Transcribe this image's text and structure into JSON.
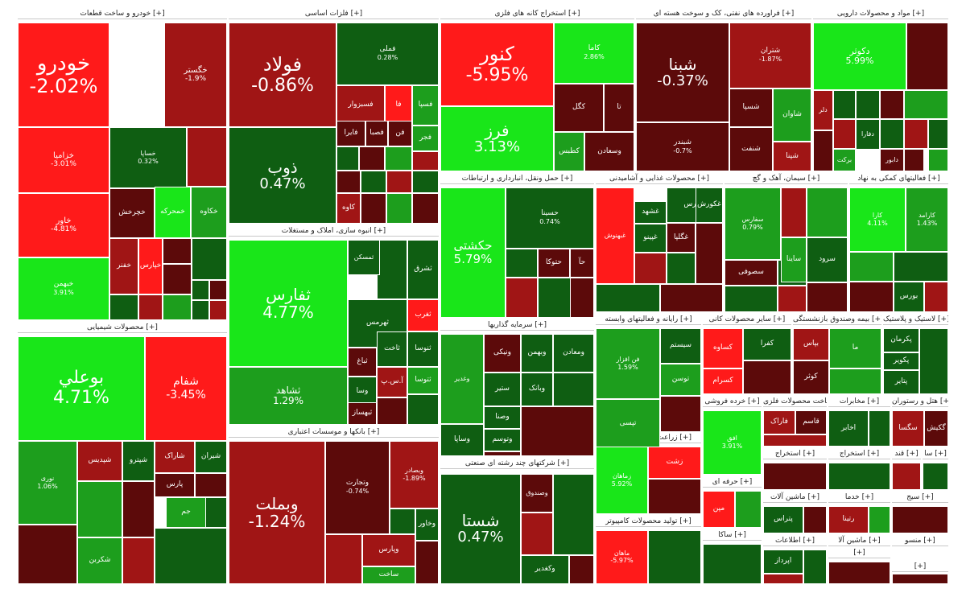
{
  "chart_data": {
    "type": "treemap",
    "title": "",
    "colors": {
      "strong_pos": "#19e619",
      "mid_pos": "#1d9e1d",
      "weak_pos": "#0f5e12",
      "weak_neg": "#5c0a0a",
      "mid_neg": "#a01515",
      "strong_neg": "#ff1a1a"
    },
    "sectors": [
      {
        "name": "خودرو و ساخت قطعات [+]",
        "stocks": [
          {
            "symbol": "خودرو",
            "change": "-2.02%",
            "value": -2.02
          },
          {
            "symbol": "خگستر",
            "change": "-1.9%",
            "value": -1.9
          },
          {
            "symbol": "خزامیا",
            "change": "-3.01%",
            "value": -3.01
          },
          {
            "symbol": "خساپا",
            "change": "0.32%",
            "value": 0.32
          },
          {
            "symbol": "خاور",
            "change": "-4.81%",
            "value": -4.81
          },
          {
            "symbol": "خبهمن",
            "change": "3.91%",
            "value": 3.91
          },
          {
            "symbol": "خمحرکه",
            "change": "",
            "value": 2.5
          },
          {
            "symbol": "خکاوه",
            "change": "",
            "value": 1.5
          },
          {
            "symbol": "خچرخش",
            "change": "",
            "value": -0.5
          },
          {
            "symbol": "خفنر",
            "change": "",
            "value": -1.5
          },
          {
            "symbol": "خپارس",
            "change": "",
            "value": -2.5
          }
        ]
      },
      {
        "name": "فلزات اساسی [+]",
        "stocks": [
          {
            "symbol": "فولاد",
            "change": "-0.86%",
            "value": -0.86
          },
          {
            "symbol": "فملی",
            "change": "0.28%",
            "value": 0.28
          },
          {
            "symbol": "ذوب",
            "change": "0.47%",
            "value": 0.47
          },
          {
            "symbol": "فسپا",
            "change": "",
            "value": 1.0
          },
          {
            "symbol": "فجر",
            "change": "",
            "value": 1.5
          },
          {
            "symbol": "فسبزوار",
            "change": "",
            "value": -0.8
          },
          {
            "symbol": "فا",
            "change": "",
            "value": -3.0
          },
          {
            "symbol": "فایرا",
            "change": "",
            "value": -0.6
          },
          {
            "symbol": "فصبا",
            "change": "",
            "value": -0.6
          },
          {
            "symbol": "فن",
            "change": "",
            "value": -0.5
          },
          {
            "symbol": "کاوه",
            "change": "",
            "value": -0.8
          }
        ]
      },
      {
        "name": "استخراج کانه های فلزی [+]",
        "stocks": [
          {
            "symbol": "کنور",
            "change": "-5.95%",
            "value": -5.95
          },
          {
            "symbol": "کاما",
            "change": "2.86%",
            "value": 2.86
          },
          {
            "symbol": "فرز",
            "change": "3.13%",
            "value": 3.13
          },
          {
            "symbol": "کگل",
            "change": "",
            "value": -0.6
          },
          {
            "symbol": "تا",
            "change": "",
            "value": -0.6
          },
          {
            "symbol": "وسعادن",
            "change": "",
            "value": -0.6
          },
          {
            "symbol": "کطبس",
            "change": "",
            "value": 1.5
          }
        ]
      },
      {
        "name": "فراورده های نفتی، کک و سوخت هسته ای [+]",
        "stocks": [
          {
            "symbol": "شبنا",
            "change": "-0.37%",
            "value": -0.37
          },
          {
            "symbol": "شتران",
            "change": "-1.87%",
            "value": -1.87
          },
          {
            "symbol": "شاوان",
            "change": "",
            "value": 1.5
          },
          {
            "symbol": "شسپا",
            "change": "",
            "value": -0.7
          },
          {
            "symbol": "شبندر",
            "change": "-0.7%",
            "value": -0.7
          },
          {
            "symbol": "شنفت",
            "change": "",
            "value": -0.6
          },
          {
            "symbol": "شپنا",
            "change": "",
            "value": -1.0
          }
        ]
      },
      {
        "name": "مواد و محصولات دارویی [+]",
        "stocks": [
          {
            "symbol": "دکوثر",
            "change": "5.99%",
            "value": 5.99
          },
          {
            "symbol": "برکت",
            "change": "",
            "value": 1.0
          },
          {
            "symbol": "دلر",
            "change": "",
            "value": -1.0
          },
          {
            "symbol": "دفارا",
            "change": "",
            "value": 0.5
          },
          {
            "symbol": "دابور",
            "change": "",
            "value": -0.7
          }
        ]
      },
      {
        "name": "محصولات شیمیایی [+]",
        "stocks": [
          {
            "symbol": "بوعلي",
            "change": "4.71%",
            "value": 4.71
          },
          {
            "symbol": "شفام",
            "change": "-3.45%",
            "value": -3.45
          },
          {
            "symbol": "نوری",
            "change": "1.06%",
            "value": 1.06
          },
          {
            "symbol": "شپدیس",
            "change": "",
            "value": -0.8
          },
          {
            "symbol": "شپترو",
            "change": "",
            "value": 0.6
          },
          {
            "symbol": "شاراک",
            "change": "",
            "value": -1.0
          },
          {
            "symbol": "شیران",
            "change": "",
            "value": 0.6
          },
          {
            "symbol": "جم",
            "change": "",
            "value": 1.0
          },
          {
            "symbol": "پارس",
            "change": "",
            "value": -0.7
          },
          {
            "symbol": "شکربن",
            "change": "",
            "value": 1.0
          }
        ]
      },
      {
        "name": "انبوه سازی، املاک و مستغلات [+]",
        "stocks": [
          {
            "symbol": "ثفارس",
            "change": "4.77%",
            "value": 4.77
          },
          {
            "symbol": "ثشاهد",
            "change": "1.29%",
            "value": 1.29
          },
          {
            "symbol": "ثمسکن",
            "change": "",
            "value": 0.6
          },
          {
            "symbol": "ثشرق",
            "change": "",
            "value": 0.6
          },
          {
            "symbol": "ثهرمس",
            "change": "",
            "value": 0.7
          },
          {
            "symbol": "ثغرب",
            "change": "",
            "value": -3.0
          },
          {
            "symbol": "ثباغ",
            "change": "",
            "value": -0.6
          },
          {
            "symbol": "ثاخت",
            "change": "",
            "value": 0.5
          },
          {
            "symbol": "ثنوسا",
            "change": "",
            "value": 0.6
          },
          {
            "symbol": "ثتوسا",
            "change": "",
            "value": 1.0
          },
          {
            "symbol": "آ.س.پ",
            "change": "",
            "value": -1.0
          },
          {
            "symbol": "وسا",
            "change": "",
            "value": 0.6
          },
          {
            "symbol": "ثبهساز",
            "change": "",
            "value": -0.6
          }
        ]
      },
      {
        "name": "حمل ونقل، انبارداری و ارتباطات [+]",
        "stocks": [
          {
            "symbol": "حکشتی",
            "change": "5.79%",
            "value": 5.79
          },
          {
            "symbol": "حسینا",
            "change": "0.74%",
            "value": 0.74
          },
          {
            "symbol": "حتوکا",
            "change": "",
            "value": -0.7
          },
          {
            "symbol": "حآ",
            "change": "",
            "value": -0.7
          }
        ]
      },
      {
        "name": "بانکها و موسسات اعتباری [+]",
        "stocks": [
          {
            "symbol": "وبملت",
            "change": "-1.24%",
            "value": -1.24
          },
          {
            "symbol": "وتجارت",
            "change": "-0.74%",
            "value": -0.74
          },
          {
            "symbol": "وبصادر",
            "change": "-1.89%",
            "value": -1.89
          },
          {
            "symbol": "وخاور",
            "change": "",
            "value": 0.6
          },
          {
            "symbol": "وپارس",
            "change": "",
            "value": -0.8
          },
          {
            "symbol": "ساخت",
            "change": "",
            "value": 0.8
          }
        ]
      },
      {
        "name": "سرمایه گذاریها [+]",
        "stocks": [
          {
            "symbol": "وغدیر",
            "change": "",
            "value": 1.0
          },
          {
            "symbol": "ونیکی",
            "change": "",
            "value": -0.6
          },
          {
            "symbol": "وبهمن",
            "change": "",
            "value": 0.5
          },
          {
            "symbol": "ومعادن",
            "change": "",
            "value": 0.5
          },
          {
            "symbol": "وبانک",
            "change": "",
            "value": 0.6
          },
          {
            "symbol": "ستیر",
            "change": "",
            "value": 0.5
          },
          {
            "symbol": "وصنا",
            "change": "",
            "value": 0.6
          },
          {
            "symbol": "وتوسم",
            "change": "",
            "value": 0.6
          },
          {
            "symbol": "وساپا",
            "change": "",
            "value": 0.5
          }
        ]
      },
      {
        "name": "شرکتهای چند رشته ای صنعتی [+]",
        "stocks": [
          {
            "symbol": "شستا",
            "change": "0.47%",
            "value": 0.47
          },
          {
            "symbol": "وصندوق",
            "change": "",
            "value": -0.6
          },
          {
            "symbol": "وکغدیر",
            "change": "",
            "value": 0.6
          }
        ]
      },
      {
        "name": "محصولات غذایی و آشامیدنی [+]",
        "stocks": [
          {
            "symbol": "غبهنوش",
            "change": "",
            "value": -3.0
          },
          {
            "symbol": "غفارس",
            "change": "",
            "value": 0.6
          },
          {
            "symbol": "غشهد",
            "change": "",
            "value": 0.6
          },
          {
            "symbol": "غپینو",
            "change": "",
            "value": 0.6
          },
          {
            "symbol": "غگلپا",
            "change": "",
            "value": -0.6
          },
          {
            "symbol": "غکورش",
            "change": "",
            "value": 0.6
          }
        ]
      },
      {
        "name": "سیمان، آهک و گچ [+]",
        "stocks": [
          {
            "symbol": "سفارس",
            "change": "0.79%",
            "value": 0.79
          },
          {
            "symbol": "ساینا",
            "change": "",
            "value": 0.8
          },
          {
            "symbol": "سرود",
            "change": "",
            "value": 0.6
          },
          {
            "symbol": "سصوفی",
            "change": "",
            "value": -0.5
          }
        ]
      },
      {
        "name": "فعالیتهای کمکی به نهاد [+]",
        "stocks": [
          {
            "symbol": "کارا",
            "change": "4.11%",
            "value": 4.11
          },
          {
            "symbol": "کارامد",
            "change": "1.43%",
            "value": 1.43
          },
          {
            "symbol": "بورس",
            "change": "",
            "value": 0.6
          }
        ]
      },
      {
        "name": "رایانه و فعالیتهای وابسته [+]",
        "stocks": [
          {
            "symbol": "فن افزار",
            "change": "1.59%",
            "value": 1.59
          },
          {
            "symbol": "سیستم",
            "change": "",
            "value": 0.6
          },
          {
            "symbol": "توسن",
            "change": "",
            "value": 0.8
          },
          {
            "symbol": "تپسی",
            "change": "",
            "value": 1.0
          }
        ]
      },
      {
        "name": "سایر محصولات کانی [+]",
        "stocks": [
          {
            "symbol": "کساوه",
            "change": "",
            "value": -3.0
          },
          {
            "symbol": "کسرام",
            "change": "",
            "value": -3.0
          },
          {
            "symbol": "کفرا",
            "change": "",
            "value": 0.6
          }
        ]
      },
      {
        "name": "بیمه وصندوق بازنشستگی [+]",
        "stocks": [
          {
            "symbol": "بپاس",
            "change": "",
            "value": -1.0
          },
          {
            "symbol": "کوثر",
            "change": "",
            "value": -0.6
          },
          {
            "symbol": "ما",
            "change": "",
            "value": 1.5
          }
        ]
      },
      {
        "name": "لاستیک و پلاستیک [+]",
        "stocks": [
          {
            "symbol": "پکرمان",
            "change": "",
            "value": 0.6
          },
          {
            "symbol": "پکویر",
            "change": "",
            "value": 0.6
          },
          {
            "symbol": "پتایر",
            "change": "",
            "value": 0.6
          }
        ]
      },
      {
        "name": "زراعت و خدمات وابسته [+]",
        "stocks": [
          {
            "symbol": "زماهان",
            "change": "5.92%",
            "value": 5.92
          },
          {
            "symbol": "زشت",
            "change": "",
            "value": -3.0
          }
        ]
      },
      {
        "name": "تولید محصولات کامپیوتر [+]",
        "stocks": [
          {
            "symbol": "ماهان",
            "change": "-5.97%",
            "value": -5.97
          }
        ]
      },
      {
        "name": "خرده فروشی [+]",
        "stocks": [
          {
            "symbol": "افق",
            "change": "3.91%",
            "value": 3.91
          }
        ]
      },
      {
        "name": "ساخت محصولات فلزی [+]",
        "stocks": [
          {
            "symbol": "فاراک",
            "change": "",
            "value": -1.0
          },
          {
            "symbol": "قاسم",
            "change": "",
            "value": -0.6
          }
        ]
      },
      {
        "name": "مخابرات [+]",
        "stocks": [
          {
            "symbol": "اخابر",
            "change": "",
            "value": 0.6
          }
        ]
      },
      {
        "name": "هتل و رستوران [+]",
        "stocks": [
          {
            "symbol": "سگسا",
            "change": "",
            "value": -1.0
          },
          {
            "symbol": "گکیش",
            "change": "",
            "value": -0.6
          }
        ]
      },
      {
        "name": "استخراج [+]",
        "stocks": []
      },
      {
        "name": "استخراج [+]",
        "stocks": []
      },
      {
        "name": "قند [+]",
        "stocks": []
      },
      {
        "name": "سا [+]",
        "stocks": []
      },
      {
        "name": "حرفه ای [+]",
        "stocks": [
          {
            "symbol": "مپن",
            "change": "",
            "value": -3.0
          }
        ]
      },
      {
        "name": "ماشین آلات [+]",
        "stocks": [
          {
            "symbol": "پتراس",
            "change": "",
            "value": 0.6
          }
        ]
      },
      {
        "name": "خدما [+]",
        "stocks": [
          {
            "symbol": "رتینا",
            "change": "",
            "value": -1.0
          }
        ]
      },
      {
        "name": "سیج [+]",
        "stocks": []
      },
      {
        "name": "ساکا [+]",
        "stocks": []
      },
      {
        "name": "اطلاعات [+]",
        "stocks": [
          {
            "symbol": "اپرداز",
            "change": "",
            "value": 0.6
          }
        ]
      },
      {
        "name": "ماشین آلا [+]",
        "stocks": []
      },
      {
        "name": "منسو [+]",
        "stocks": []
      },
      {
        "name": "[+]",
        "stocks": []
      },
      {
        "name": "[+]",
        "stocks": []
      },
      {
        "name": "[+]",
        "stocks": []
      }
    ]
  }
}
